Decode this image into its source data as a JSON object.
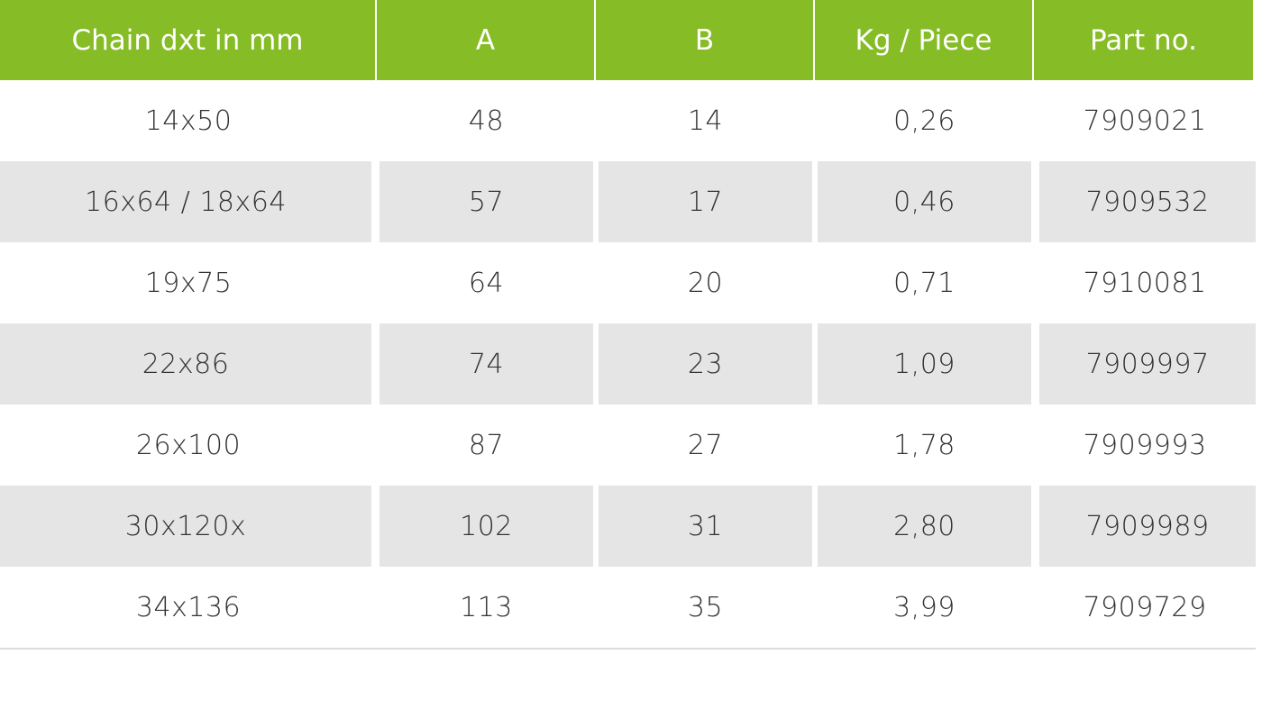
{
  "table": {
    "headers": [
      "Chain dxt in mm",
      "A",
      "B",
      "Kg / Piece",
      "Part no."
    ],
    "rows": [
      [
        "14x50",
        "48",
        "14",
        "0,26",
        "7909021"
      ],
      [
        "16x64 / 18x64",
        "57",
        "17",
        "0,46",
        "7909532"
      ],
      [
        "19x75",
        "64",
        "20",
        "0,71",
        "7910081"
      ],
      [
        "22x86",
        "74",
        "23",
        "1,09",
        "7909997"
      ],
      [
        "26x100",
        "87",
        "27",
        "1,78",
        "7909993"
      ],
      [
        "30x120x",
        "102",
        "31",
        "2,80",
        "7909989"
      ],
      [
        "34x136",
        "113",
        "35",
        "3,99",
        "7909729"
      ]
    ]
  },
  "colors": {
    "header_bg": "#86bc25",
    "header_text": "#ffffff",
    "stripe_bg": "#e5e5e5",
    "body_text": "#333333"
  }
}
